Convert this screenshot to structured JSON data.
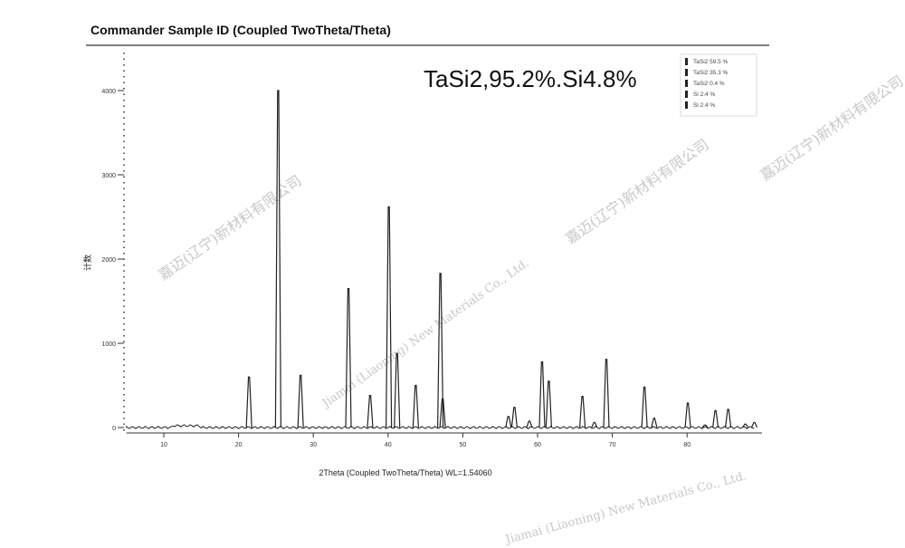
{
  "header": {
    "title": "Commander Sample ID (Coupled TwoTheta/Theta)"
  },
  "annotation": "TaSi2,95.2%.Si4.8%",
  "watermark": {
    "cn": "嘉迈(辽宁)新材料有限公司",
    "en": "Jiamai (Liaoning) New Materials Co., Ltd."
  },
  "chart_data": {
    "type": "line",
    "title": "Commander Sample ID (Coupled TwoTheta/Theta)",
    "xlabel": "2Theta (Coupled TwoTheta/Theta) WL=1.54060",
    "ylabel": "计数",
    "xlim": [
      5,
      89
    ],
    "ylim": [
      -100,
      4800
    ],
    "xticks": [
      10,
      20,
      30,
      40,
      50,
      60,
      70,
      80
    ],
    "yticks": [
      0,
      1000,
      2000,
      3000,
      4000
    ],
    "grid": false,
    "legend": {
      "placement": "top-right",
      "entries": [
        "TaSi2 59.5 %",
        "TaSi2 35.3 %",
        "TaSi2 0.4 %",
        "Si 2.4 %",
        "Si 2.4 %"
      ]
    },
    "peaks": [
      {
        "x": 21.4,
        "y": 600
      },
      {
        "x": 25.3,
        "y": 4000
      },
      {
        "x": 28.3,
        "y": 620
      },
      {
        "x": 34.7,
        "y": 1650
      },
      {
        "x": 37.6,
        "y": 380
      },
      {
        "x": 40.1,
        "y": 2620
      },
      {
        "x": 41.2,
        "y": 880
      },
      {
        "x": 43.7,
        "y": 500
      },
      {
        "x": 47.0,
        "y": 1830
      },
      {
        "x": 47.3,
        "y": 340
      },
      {
        "x": 56.1,
        "y": 130
      },
      {
        "x": 56.9,
        "y": 240
      },
      {
        "x": 58.9,
        "y": 75
      },
      {
        "x": 60.6,
        "y": 780
      },
      {
        "x": 61.5,
        "y": 550
      },
      {
        "x": 66.0,
        "y": 370
      },
      {
        "x": 67.6,
        "y": 60
      },
      {
        "x": 69.2,
        "y": 810
      },
      {
        "x": 74.3,
        "y": 480
      },
      {
        "x": 75.6,
        "y": 110
      },
      {
        "x": 80.1,
        "y": 290
      },
      {
        "x": 82.4,
        "y": 30
      },
      {
        "x": 83.8,
        "y": 200
      },
      {
        "x": 85.5,
        "y": 215
      },
      {
        "x": 87.8,
        "y": 40
      },
      {
        "x": 89.0,
        "y": 60
      }
    ]
  }
}
